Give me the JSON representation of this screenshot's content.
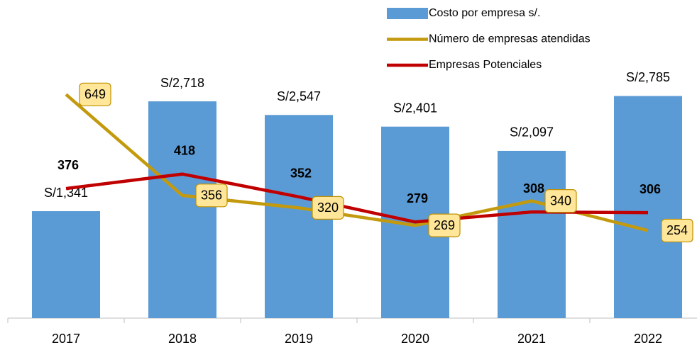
{
  "chart_data": {
    "type": "bar",
    "categories": [
      "2017",
      "2018",
      "2019",
      "2020",
      "2021",
      "2022"
    ],
    "ylim": [
      0,
      3500
    ],
    "y2lim": [
      0,
      810
    ],
    "legend": "top-right",
    "series": [
      {
        "name": "Costo por empresa s/.",
        "type": "bar",
        "color": "#5b9bd5",
        "values": [
          1341,
          2718,
          2547,
          2401,
          2097,
          2785
        ],
        "value_labels": [
          "S/1,341",
          "S/2,718",
          "S/2,547",
          "S/2,401",
          "S/2,097",
          "S/2,785"
        ]
      },
      {
        "name": "Número de empresas atendidas",
        "type": "line",
        "axis": "y2",
        "color": "#c39a0e",
        "values": [
          649,
          356,
          320,
          269,
          340,
          254
        ]
      },
      {
        "name": "Empresas Potenciales",
        "type": "line",
        "axis": "y2",
        "color": "#c00000",
        "values": [
          376,
          418,
          352,
          279,
          308,
          306
        ]
      }
    ]
  }
}
